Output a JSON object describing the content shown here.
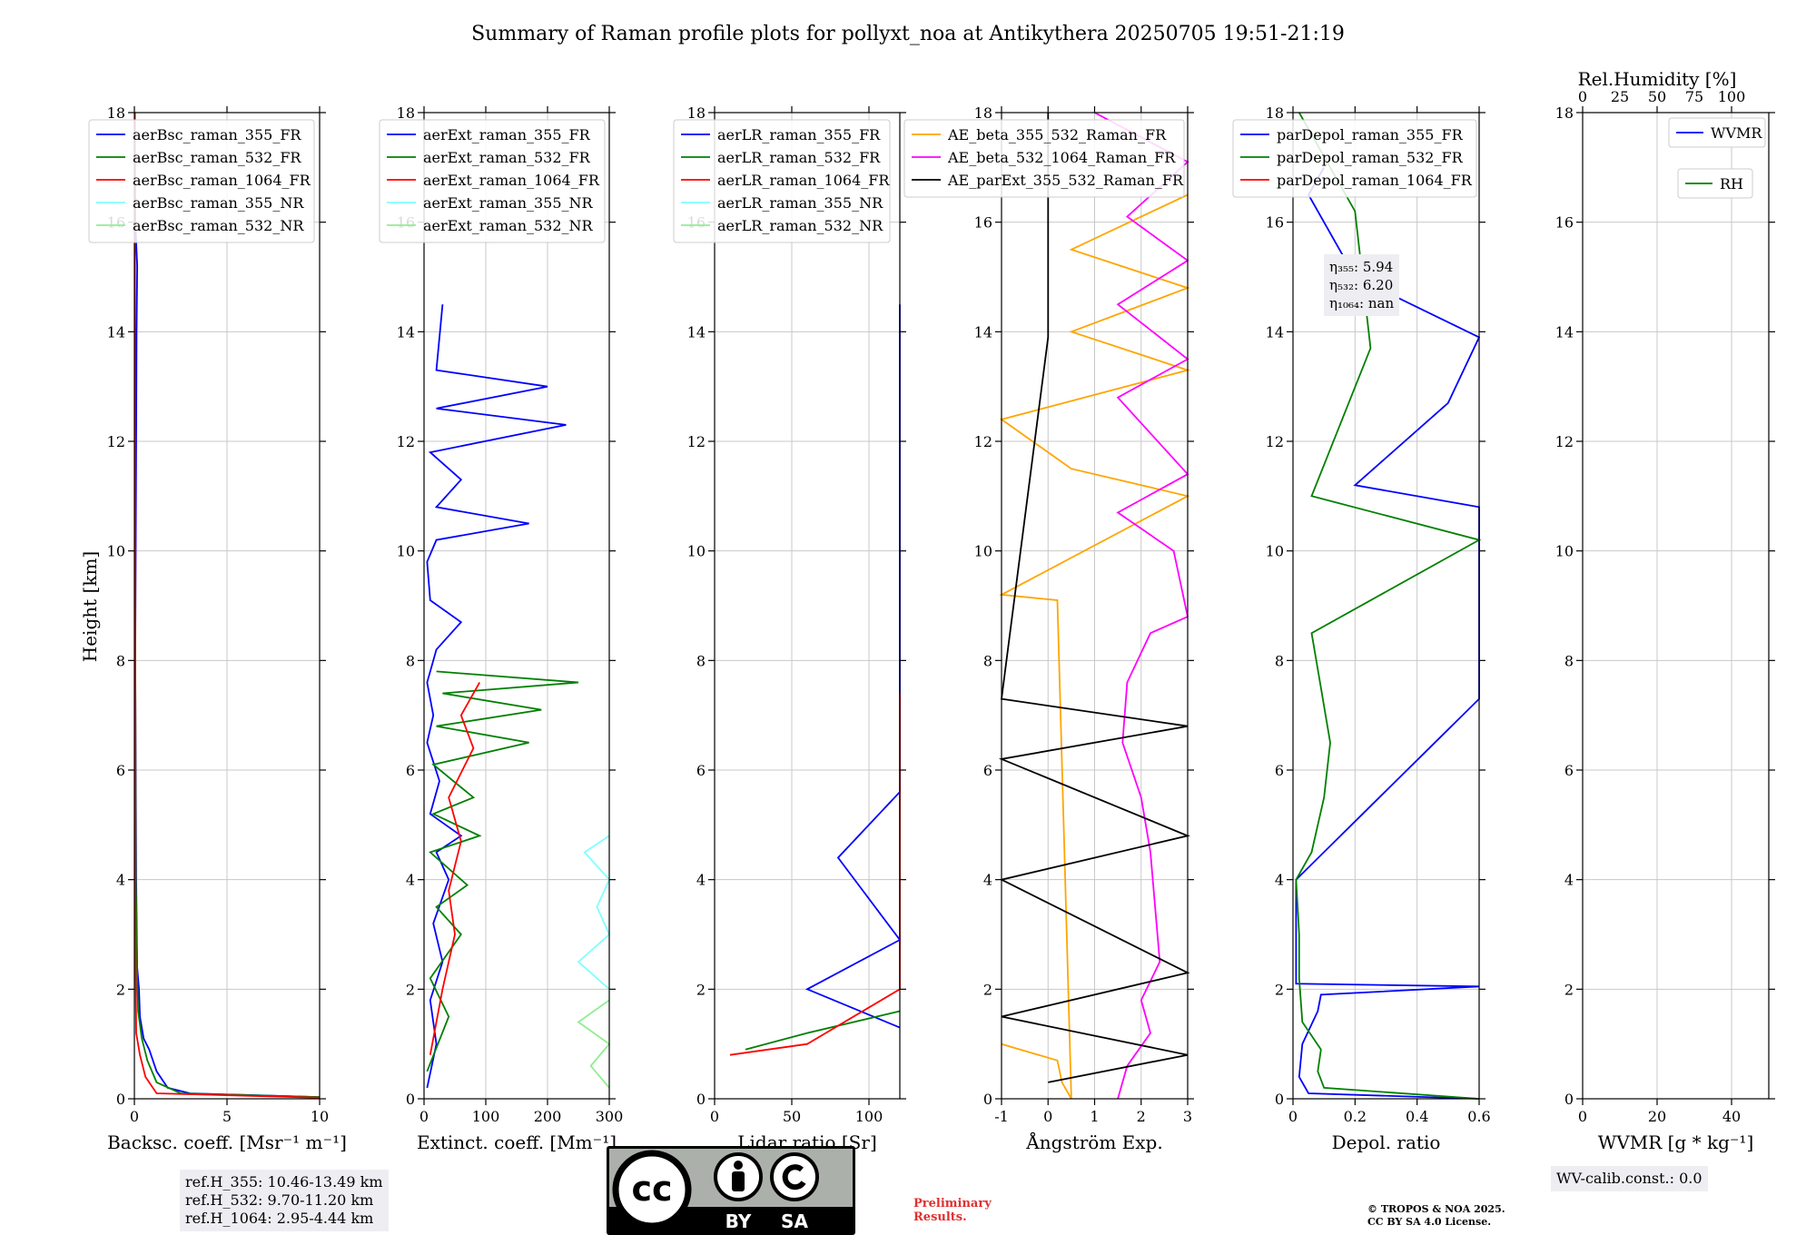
{
  "title": "Summary of Raman profile plots for pollyxt_noa at Antikythera 20250705 19:51-21:19",
  "ylabel": "Height [km]",
  "y_ticks": [
    "0",
    "2",
    "4",
    "6",
    "8",
    "10",
    "12",
    "14",
    "16",
    "18"
  ],
  "ref_heights": [
    "ref.H_355: 10.46-13.49 km",
    "ref.H_532: 9.70-11.20 km",
    "ref.H_1064: 2.95-4.44 km"
  ],
  "eta": [
    "η₃₅₅: 5.94",
    "η₅₃₂: 6.20",
    "η₁₀₆₄: nan"
  ],
  "wv_calib": "WV-calib.const.: 0.0",
  "preliminary": [
    "Preliminary",
    "Results."
  ],
  "copyright": [
    "© TROPOS & NOA 2025.",
    "CC BY SA 4.0 License."
  ],
  "license_badge": {
    "cc": "cc",
    "by": "BY",
    "sa": "SA"
  },
  "colors": {
    "blue": "#0000ff",
    "green": "#008000",
    "red": "#ff0000",
    "cyan": "#80ffff",
    "lightgreen": "#90ee90",
    "orange": "#ffa500",
    "magenta": "#ff00ff",
    "black": "#000000"
  },
  "chart_data": [
    {
      "type": "line",
      "xlabel": "Backsc. coeff. [Msr⁻¹ m⁻¹]",
      "xlim": [
        0,
        10
      ],
      "ylim": [
        0,
        18
      ],
      "x_ticks": [
        0,
        5,
        10
      ],
      "series": [
        {
          "name": "aerBsc_raman_355_FR",
          "color": "#0000ff",
          "points": [
            [
              10,
              0.03
            ],
            [
              3,
              0.1
            ],
            [
              1.8,
              0.2
            ],
            [
              1.2,
              0.5
            ],
            [
              0.8,
              0.9
            ],
            [
              0.5,
              1.1
            ],
            [
              0.3,
              1.5
            ],
            [
              0.25,
              2.0
            ],
            [
              0.15,
              2.4
            ],
            [
              0.1,
              4
            ],
            [
              0.05,
              8
            ],
            [
              0.1,
              12
            ],
            [
              0.12,
              14
            ],
            [
              0.15,
              15.2
            ],
            [
              0.05,
              16
            ],
            [
              0.02,
              18
            ]
          ]
        },
        {
          "name": "aerBsc_raman_532_FR",
          "color": "#008000",
          "points": [
            [
              10,
              0.03
            ],
            [
              2.5,
              0.1
            ],
            [
              1.2,
              0.3
            ],
            [
              0.7,
              0.7
            ],
            [
              0.4,
              1.1
            ],
            [
              0.2,
              1.6
            ],
            [
              0.15,
              2.2
            ],
            [
              0.08,
              4
            ],
            [
              0.04,
              10
            ],
            [
              0.03,
              18
            ]
          ]
        },
        {
          "name": "aerBsc_raman_1064_FR",
          "color": "#ff0000",
          "points": [
            [
              10,
              0.02
            ],
            [
              1.2,
              0.1
            ],
            [
              0.6,
              0.4
            ],
            [
              0.3,
              0.8
            ],
            [
              0.1,
              1.2
            ],
            [
              0.05,
              3
            ],
            [
              0.02,
              18
            ]
          ]
        },
        {
          "name": "aerBsc_raman_355_NR",
          "color": "#80ffff",
          "points": []
        },
        {
          "name": "aerBsc_raman_532_NR",
          "color": "#90ee90",
          "points": []
        }
      ]
    },
    {
      "type": "line",
      "xlabel": "Extinct. coeff. [Mm⁻¹]",
      "xlim": [
        0,
        300
      ],
      "ylim": [
        0,
        18
      ],
      "x_ticks": [
        0,
        100,
        200,
        300
      ],
      "series": [
        {
          "name": "aerExt_raman_355_FR",
          "color": "#0000ff",
          "points": [
            [
              5,
              0.2
            ],
            [
              20,
              1.0
            ],
            [
              10,
              1.8
            ],
            [
              30,
              2.5
            ],
            [
              15,
              3.2
            ],
            [
              40,
              4.0
            ],
            [
              20,
              4.5
            ],
            [
              60,
              4.8
            ],
            [
              10,
              5.2
            ],
            [
              25,
              5.8
            ],
            [
              5,
              6.5
            ],
            [
              15,
              7.0
            ],
            [
              5,
              7.6
            ],
            [
              20,
              8.2
            ],
            [
              60,
              8.7
            ],
            [
              10,
              9.1
            ],
            [
              5,
              9.8
            ],
            [
              20,
              10.2
            ],
            [
              170,
              10.5
            ],
            [
              20,
              10.8
            ],
            [
              60,
              11.3
            ],
            [
              10,
              11.8
            ],
            [
              230,
              12.3
            ],
            [
              20,
              12.6
            ],
            [
              200,
              13.0
            ],
            [
              20,
              13.3
            ],
            [
              30,
              14.5
            ]
          ]
        },
        {
          "name": "aerExt_raman_532_FR",
          "color": "#008000",
          "points": [
            [
              5,
              0.5
            ],
            [
              40,
              1.5
            ],
            [
              10,
              2.2
            ],
            [
              60,
              3.0
            ],
            [
              20,
              3.5
            ],
            [
              70,
              3.9
            ],
            [
              10,
              4.5
            ],
            [
              90,
              4.8
            ],
            [
              15,
              5.2
            ],
            [
              80,
              5.5
            ],
            [
              15,
              6.1
            ],
            [
              170,
              6.5
            ],
            [
              20,
              6.8
            ],
            [
              190,
              7.1
            ],
            [
              30,
              7.4
            ],
            [
              250,
              7.6
            ],
            [
              20,
              7.8
            ]
          ]
        },
        {
          "name": "aerExt_raman_1064_FR",
          "color": "#ff0000",
          "points": [
            [
              10,
              0.8
            ],
            [
              30,
              2.0
            ],
            [
              50,
              3.0
            ],
            [
              40,
              3.8
            ],
            [
              60,
              4.7
            ],
            [
              40,
              5.5
            ],
            [
              80,
              6.4
            ],
            [
              60,
              7.0
            ],
            [
              90,
              7.6
            ]
          ]
        },
        {
          "name": "aerExt_raman_355_NR",
          "color": "#80ffff",
          "points": [
            [
              300,
              2.0
            ],
            [
              250,
              2.5
            ],
            [
              300,
              3.0
            ],
            [
              280,
              3.5
            ],
            [
              300,
              4.0
            ],
            [
              260,
              4.5
            ],
            [
              300,
              4.8
            ]
          ]
        },
        {
          "name": "aerExt_raman_532_NR",
          "color": "#90ee90",
          "points": [
            [
              300,
              0.2
            ],
            [
              270,
              0.6
            ],
            [
              300,
              1.0
            ],
            [
              250,
              1.4
            ],
            [
              300,
              1.8
            ]
          ]
        }
      ]
    },
    {
      "type": "line",
      "xlabel": "Lidar ratio [Sr]",
      "xlim": [
        0,
        120
      ],
      "ylim": [
        0,
        18
      ],
      "x_ticks": [
        0,
        50,
        100
      ],
      "series": [
        {
          "name": "aerLR_raman_355_FR",
          "color": "#0000ff",
          "points": [
            [
              120,
              1.3
            ],
            [
              60,
              2.0
            ],
            [
              120,
              2.9
            ],
            [
              80,
              4.4
            ],
            [
              120,
              5.6
            ],
            [
              120,
              7.8
            ],
            [
              120,
              9.0
            ],
            [
              120,
              10.0
            ],
            [
              120,
              11.3
            ],
            [
              120,
              12.2
            ],
            [
              120,
              13.5
            ],
            [
              120,
              14.5
            ]
          ]
        },
        {
          "name": "aerLR_raman_532_FR",
          "color": "#008000",
          "points": [
            [
              20,
              0.9
            ],
            [
              60,
              1.2
            ],
            [
              120,
              1.6
            ]
          ]
        },
        {
          "name": "aerLR_raman_1064_FR",
          "color": "#ff0000",
          "points": [
            [
              10,
              0.8
            ],
            [
              60,
              1.0
            ],
            [
              120,
              2.0
            ],
            [
              120,
              3.5
            ],
            [
              120,
              4.7
            ],
            [
              120,
              5.8
            ],
            [
              120,
              6.8
            ],
            [
              120,
              7.4
            ]
          ]
        },
        {
          "name": "aerLR_raman_355_NR",
          "color": "#80ffff",
          "points": []
        },
        {
          "name": "aerLR_raman_532_NR",
          "color": "#90ee90",
          "points": []
        }
      ]
    },
    {
      "type": "line",
      "xlabel": "Ångström Exp.",
      "xlim": [
        -1,
        3
      ],
      "ylim": [
        0,
        18
      ],
      "x_ticks": [
        -1,
        0,
        1,
        2,
        3
      ],
      "series": [
        {
          "name": "AE_beta_355_532_Raman_FR",
          "color": "#ffa500",
          "points": [
            [
              -1,
              1.0
            ],
            [
              0.2,
              0.7
            ],
            [
              0.3,
              0.3
            ],
            [
              0.5,
              0
            ],
            [
              0.2,
              9.1
            ],
            [
              -1,
              9.2
            ],
            [
              3,
              11.0
            ],
            [
              0.5,
              11.5
            ],
            [
              -1,
              12.4
            ],
            [
              3,
              13.3
            ],
            [
              0.5,
              14.0
            ],
            [
              3,
              14.8
            ],
            [
              0.5,
              15.5
            ],
            [
              3,
              16.5
            ]
          ]
        },
        {
          "name": "AE_beta_532_1064_Raman_FR",
          "color": "#ff00ff",
          "points": [
            [
              1.5,
              0
            ],
            [
              1.7,
              0.6
            ],
            [
              2.2,
              1.2
            ],
            [
              2.0,
              1.8
            ],
            [
              2.4,
              2.5
            ],
            [
              2.2,
              4.5
            ],
            [
              2.0,
              5.5
            ],
            [
              1.6,
              6.5
            ],
            [
              1.7,
              7.6
            ],
            [
              2.2,
              8.5
            ],
            [
              3,
              8.8
            ],
            [
              2.7,
              10.0
            ],
            [
              1.5,
              10.7
            ],
            [
              3,
              11.4
            ],
            [
              1.5,
              12.8
            ],
            [
              3,
              13.5
            ],
            [
              1.5,
              14.5
            ],
            [
              3,
              15.3
            ],
            [
              1.7,
              16.1
            ],
            [
              3,
              17.1
            ],
            [
              1.0,
              18
            ]
          ]
        },
        {
          "name": "AE_parExt_355_532_Raman_FR",
          "color": "#000000",
          "points": [
            [
              0,
              0.3
            ],
            [
              3,
              0.8
            ],
            [
              -1,
              1.5
            ],
            [
              3,
              2.3
            ],
            [
              -1,
              4.0
            ],
            [
              3,
              4.8
            ],
            [
              -1,
              6.2
            ],
            [
              3,
              6.8
            ],
            [
              -1,
              7.3
            ],
            [
              0,
              13.9
            ],
            [
              0,
              15.0
            ],
            [
              0,
              18
            ]
          ]
        }
      ]
    },
    {
      "type": "line",
      "xlabel": "Depol. ratio",
      "xlim": [
        0,
        0.6
      ],
      "ylim": [
        0,
        18
      ],
      "x_ticks": [
        0.0,
        0.2,
        0.4,
        0.6
      ],
      "series": [
        {
          "name": "parDepol_raman_355_FR",
          "color": "#0000ff",
          "points": [
            [
              0.6,
              0
            ],
            [
              0.05,
              0.1
            ],
            [
              0.02,
              0.4
            ],
            [
              0.03,
              1.0
            ],
            [
              0.08,
              1.6
            ],
            [
              0.09,
              1.9
            ],
            [
              0.6,
              2.05
            ],
            [
              0.01,
              2.1
            ],
            [
              0.01,
              4.0
            ],
            [
              0.6,
              7.3
            ],
            [
              0.6,
              9.2
            ],
            [
              0.6,
              10.8
            ],
            [
              0.2,
              11.2
            ],
            [
              0.5,
              12.7
            ],
            [
              0.6,
              13.9
            ],
            [
              0.2,
              15.0
            ],
            [
              0.05,
              16.5
            ],
            [
              0.1,
              17
            ]
          ]
        },
        {
          "name": "parDepol_raman_532_FR",
          "color": "#008000",
          "points": [
            [
              0.6,
              0
            ],
            [
              0.1,
              0.2
            ],
            [
              0.08,
              0.5
            ],
            [
              0.09,
              0.9
            ],
            [
              0.03,
              1.4
            ],
            [
              0.02,
              2.2
            ],
            [
              0.02,
              3.0
            ],
            [
              0.01,
              4.0
            ],
            [
              0.06,
              4.5
            ],
            [
              0.1,
              5.5
            ],
            [
              0.12,
              6.5
            ],
            [
              0.09,
              7.5
            ],
            [
              0.06,
              8.5
            ],
            [
              0.6,
              10.2
            ],
            [
              0.06,
              11
            ],
            [
              0.25,
              13.7
            ],
            [
              0.2,
              16.2
            ],
            [
              0.02,
              18
            ]
          ]
        },
        {
          "name": "parDepol_raman_1064_FR",
          "color": "#ff0000",
          "points": []
        }
      ]
    },
    {
      "type": "line",
      "xlabel": "WVMR [g * kg⁻¹]",
      "xlim": [
        0,
        50
      ],
      "ylim": [
        0,
        18
      ],
      "x_ticks": [
        0,
        20,
        40
      ],
      "top_label": "Rel.Humidity [%]",
      "top_ticks": [
        0,
        25,
        50,
        75,
        100
      ],
      "series": [
        {
          "name": "WVMR",
          "color": "#0000ff",
          "points": []
        },
        {
          "name": "RH",
          "color": "#008000",
          "points": []
        }
      ]
    }
  ]
}
